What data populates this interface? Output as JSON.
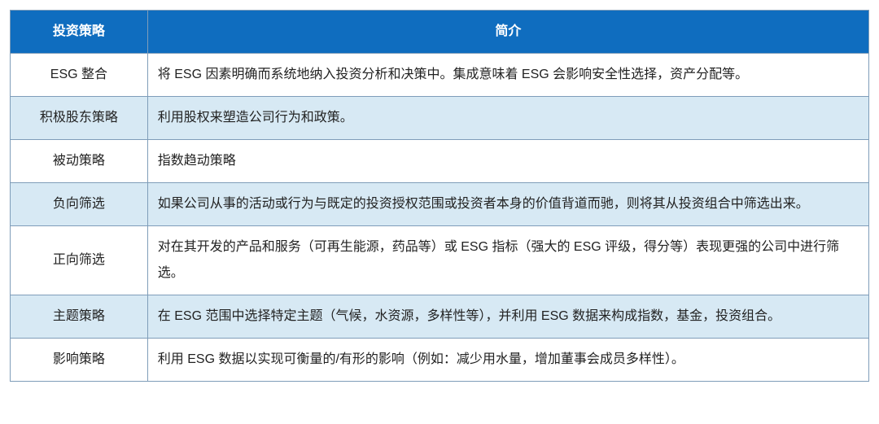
{
  "table": {
    "colors": {
      "header_bg": "#0f6dbf",
      "header_text": "#ffffff",
      "row_alt_bg": "#d7e9f4",
      "row_bg": "#ffffff",
      "text": "#222222",
      "border": "#7f9db9"
    },
    "columns": [
      {
        "key": "strategy",
        "label": "投资策略"
      },
      {
        "key": "desc",
        "label": "简介"
      }
    ],
    "rows": [
      {
        "strategy": "ESG 整合",
        "desc": "将 ESG 因素明确而系统地纳入投资分析和决策中。集成意味着 ESG 会影响安全性选择，资产分配等。"
      },
      {
        "strategy": "积极股东策略",
        "desc": "利用股权来塑造公司行为和政策。"
      },
      {
        "strategy": "被动策略",
        "desc": "指数趋动策略"
      },
      {
        "strategy": "负向筛选",
        "desc": "如果公司从事的活动或行为与既定的投资授权范围或投资者本身的价值背道而驰，则将其从投资组合中筛选出来。"
      },
      {
        "strategy": "正向筛选",
        "desc": "对在其开发的产品和服务（可再生能源，药品等）或 ESG 指标（强大的 ESG 评级，得分等）表现更强的公司中进行筛选。"
      },
      {
        "strategy": "主题策略",
        "desc": "在 ESG 范围中选择特定主题（气候，水资源，多样性等），并利用 ESG 数据来构成指数，基金，投资组合。"
      },
      {
        "strategy": "影响策略",
        "desc": "利用 ESG 数据以实现可衡量的/有形的影响（例如：减少用水量，增加董事会成员多样性）。"
      }
    ]
  }
}
